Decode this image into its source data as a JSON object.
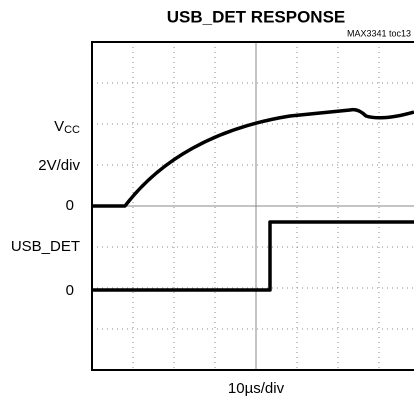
{
  "header": {
    "title": "USB_DET RESPONSE",
    "subtitle": "MAX3341 toc13"
  },
  "channels": [
    {
      "name": "V",
      "name_sub": "CC",
      "scale": "2V/div",
      "zero": "0"
    },
    {
      "name": "USB_DET",
      "zero": "0"
    }
  ],
  "timebase": "10µs/div"
}
